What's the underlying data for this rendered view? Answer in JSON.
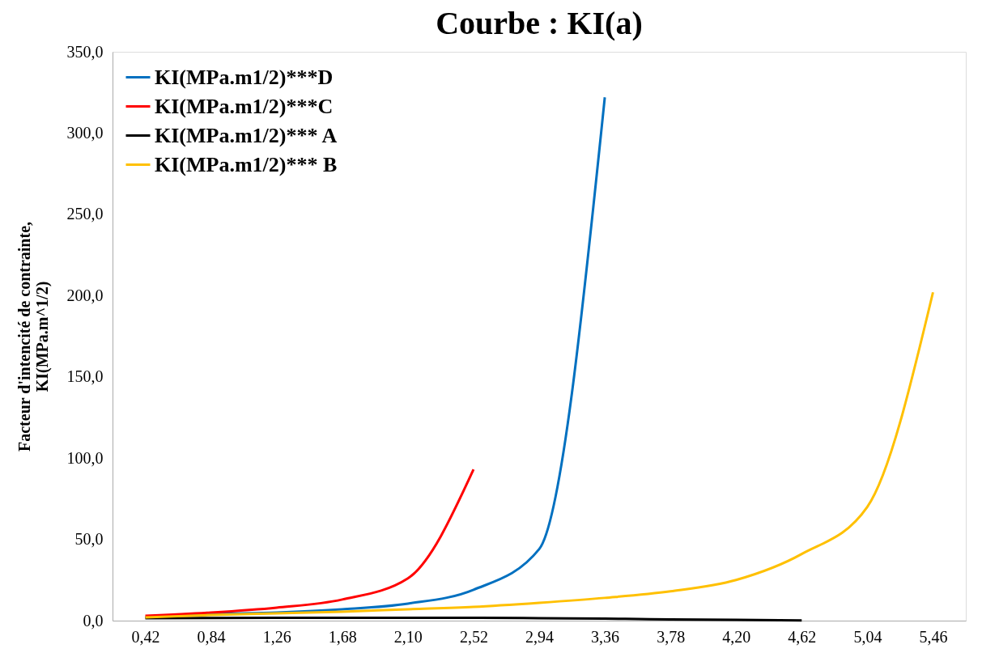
{
  "chart_data": {
    "type": "line",
    "title": "Courbe : KI(a)",
    "ylabel": "Facteur d'intencité de contrainte,\nKI(MPa.m^1/2)",
    "categories": [
      "0,42",
      "0,84",
      "1,26",
      "1,68",
      "2,10",
      "2,52",
      "2,94",
      "3,36",
      "3,78",
      "4,20",
      "4,62",
      "5,04",
      "5,46"
    ],
    "series": [
      {
        "name": "KI(MPa.m1/2)***D",
        "color": "#0070c0",
        "values": [
          2,
          4,
          5,
          7,
          10.5,
          19,
          44,
          322,
          null,
          null,
          null,
          null,
          null
        ]
      },
      {
        "name": "KI(MPa.m1/2)***C",
        "color": "#ff0000",
        "values": [
          3,
          5,
          8,
          13,
          26,
          93,
          null,
          null,
          null,
          null,
          null,
          null,
          null
        ]
      },
      {
        "name": "KI(MPa.m1/2)*** A",
        "color": "#000000",
        "values": [
          1.5,
          1.6,
          1.7,
          1.8,
          1.8,
          1.8,
          1.5,
          1.2,
          0.8,
          0.5,
          0.1,
          null,
          null
        ]
      },
      {
        "name": "KI(MPa.m1/2)*** B",
        "color": "#ffc000",
        "values": [
          2,
          3.5,
          4.5,
          5.5,
          7,
          8.5,
          11,
          14,
          18,
          25,
          41,
          70,
          202
        ]
      }
    ],
    "ylim": [
      0,
      350
    ],
    "yticks": [
      {
        "value": 0,
        "label": "0,0"
      },
      {
        "value": 50,
        "label": "50,0"
      },
      {
        "value": 100,
        "label": "100,0"
      },
      {
        "value": 150,
        "label": "150,0"
      },
      {
        "value": 200,
        "label": "200,0"
      },
      {
        "value": 250,
        "label": "250,0"
      },
      {
        "value": 300,
        "label": "300,0"
      },
      {
        "value": 350,
        "label": "350,0"
      }
    ],
    "grid": false,
    "legend": "top left",
    "marker": "none",
    "line_style": "solid"
  }
}
